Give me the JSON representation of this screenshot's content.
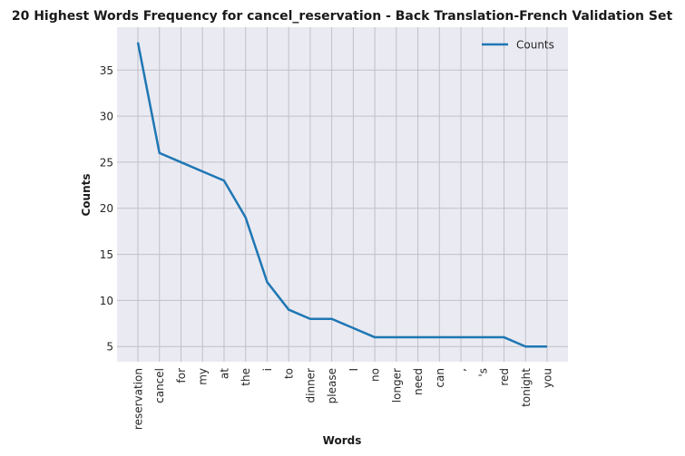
{
  "chart_data": {
    "type": "line",
    "title": "20 Highest Words Frequency for cancel_reservation - Back Translation-French Validation Set",
    "xlabel": "Words",
    "ylabel": "Counts",
    "categories": [
      "reservation",
      "cancel",
      "for",
      "my",
      "at",
      "the",
      "i",
      "to",
      "dinner",
      "please",
      "I",
      "no",
      "longer",
      "need",
      "can",
      ",",
      "'s",
      "red",
      "tonight",
      "you"
    ],
    "series": [
      {
        "name": "Counts",
        "values": [
          38,
          26,
          25,
          24,
          23,
          19,
          12,
          9,
          8,
          8,
          7,
          6,
          6,
          6,
          6,
          6,
          6,
          6,
          5,
          5
        ]
      }
    ],
    "yticks": [
      5,
      10,
      15,
      20,
      25,
      30,
      35
    ],
    "ylim": [
      3.35,
      39.65
    ],
    "grid": true,
    "legend_position": "top-right",
    "colors": {
      "line": "#1f77b4",
      "plot_background": "#eaeaf2",
      "grid": "#c0c0c8"
    }
  }
}
